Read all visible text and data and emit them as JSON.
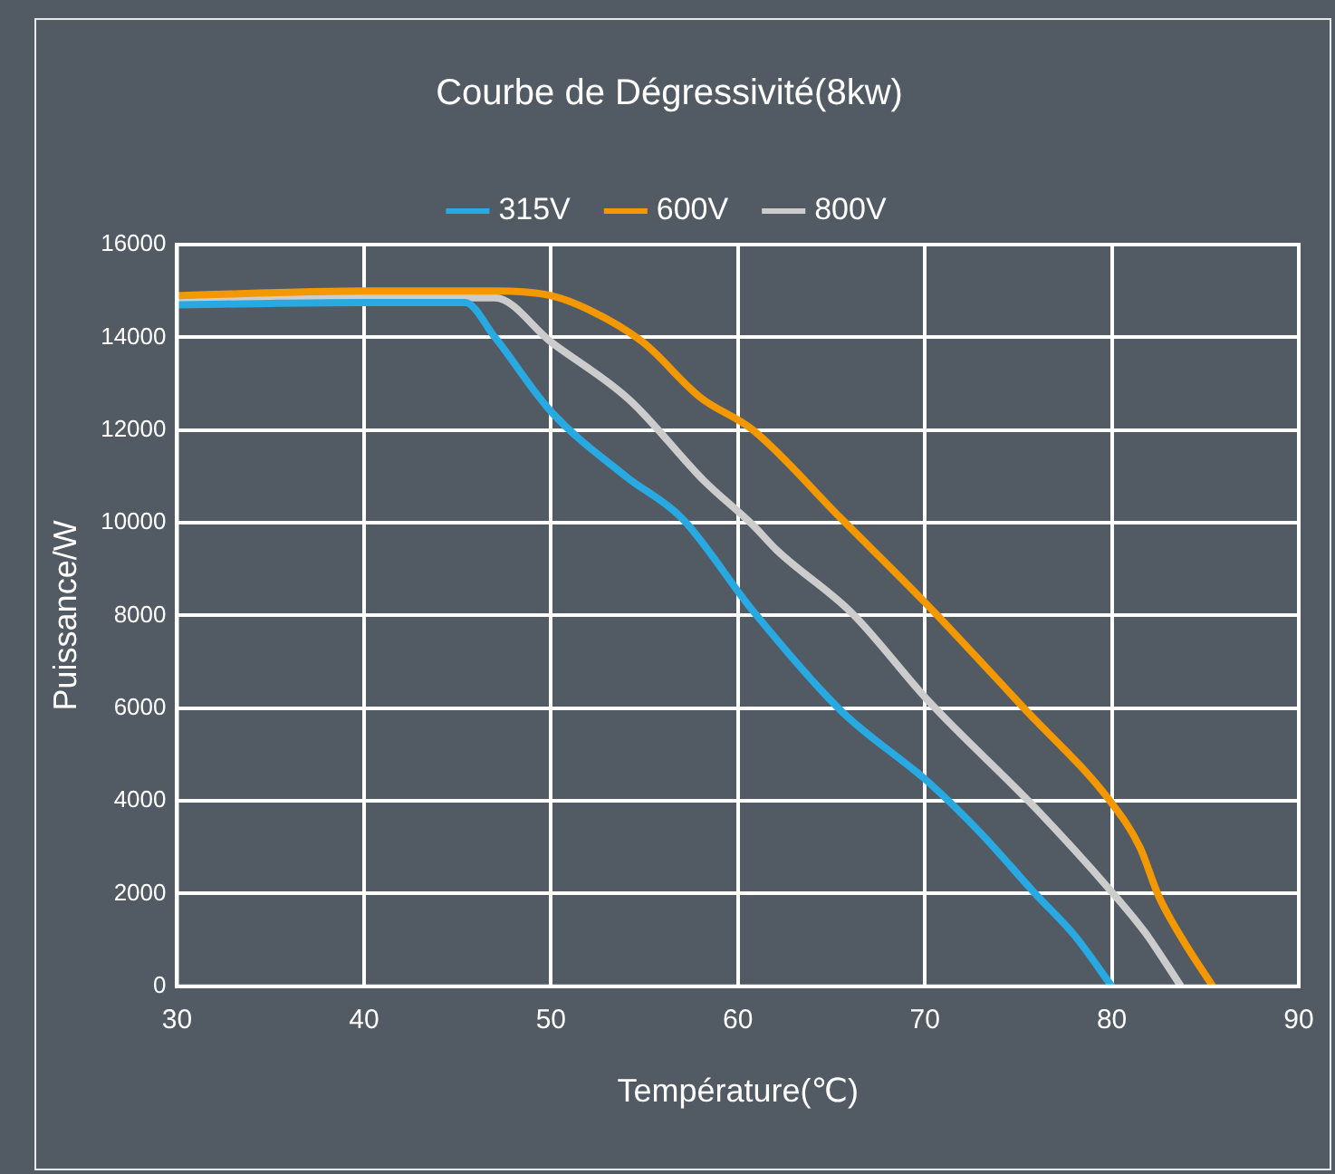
{
  "chart_data": {
    "type": "line",
    "title": "Courbe de Dégressivité(8kw)",
    "xlabel": "Température(℃)",
    "ylabel": "Puissance/W",
    "xlim": [
      30,
      90
    ],
    "xticks": [
      30,
      40,
      50,
      60,
      70,
      80,
      90
    ],
    "ylim": [
      0,
      16000
    ],
    "yticks": [
      0,
      2000,
      4000,
      6000,
      8000,
      10000,
      12000,
      14000,
      16000
    ],
    "grid": true,
    "legend": "top",
    "marker": "none",
    "line_style": "solid",
    "series": [
      {
        "name": "315V",
        "color": "#29a9e1",
        "x": [
          30,
          40,
          45.4,
          47,
          50,
          54,
          57,
          60.8,
          65.5,
          70.2,
          73,
          75.9,
          78,
          80
        ],
        "values": [
          14700,
          14750,
          14750,
          14000,
          12400,
          11000,
          10100,
          8100,
          5950,
          4400,
          3300,
          2000,
          1100,
          0
        ]
      },
      {
        "name": "600V",
        "color": "#f39800",
        "x": [
          30,
          40,
          47,
          50,
          52,
          54.9,
          58,
          60.8,
          65.5,
          70.2,
          75.3,
          79.9,
          81.5,
          82.5,
          83.8,
          85.4
        ],
        "values": [
          14900,
          15000,
          15000,
          14900,
          14600,
          13900,
          12700,
          12000,
          10100,
          8200,
          6000,
          4000,
          3000,
          1950,
          1000,
          0
        ]
      },
      {
        "name": "800V",
        "color": "#cccccc",
        "x": [
          30,
          40,
          47,
          50,
          54.2,
          58.2,
          60.8,
          62.1,
          66.1,
          70.2,
          75.9,
          79.9,
          81.8,
          83.7
        ],
        "values": [
          14800,
          14850,
          14850,
          13900,
          12650,
          10900,
          9950,
          9400,
          8050,
          6150,
          3850,
          2080,
          1150,
          0
        ]
      }
    ]
  }
}
